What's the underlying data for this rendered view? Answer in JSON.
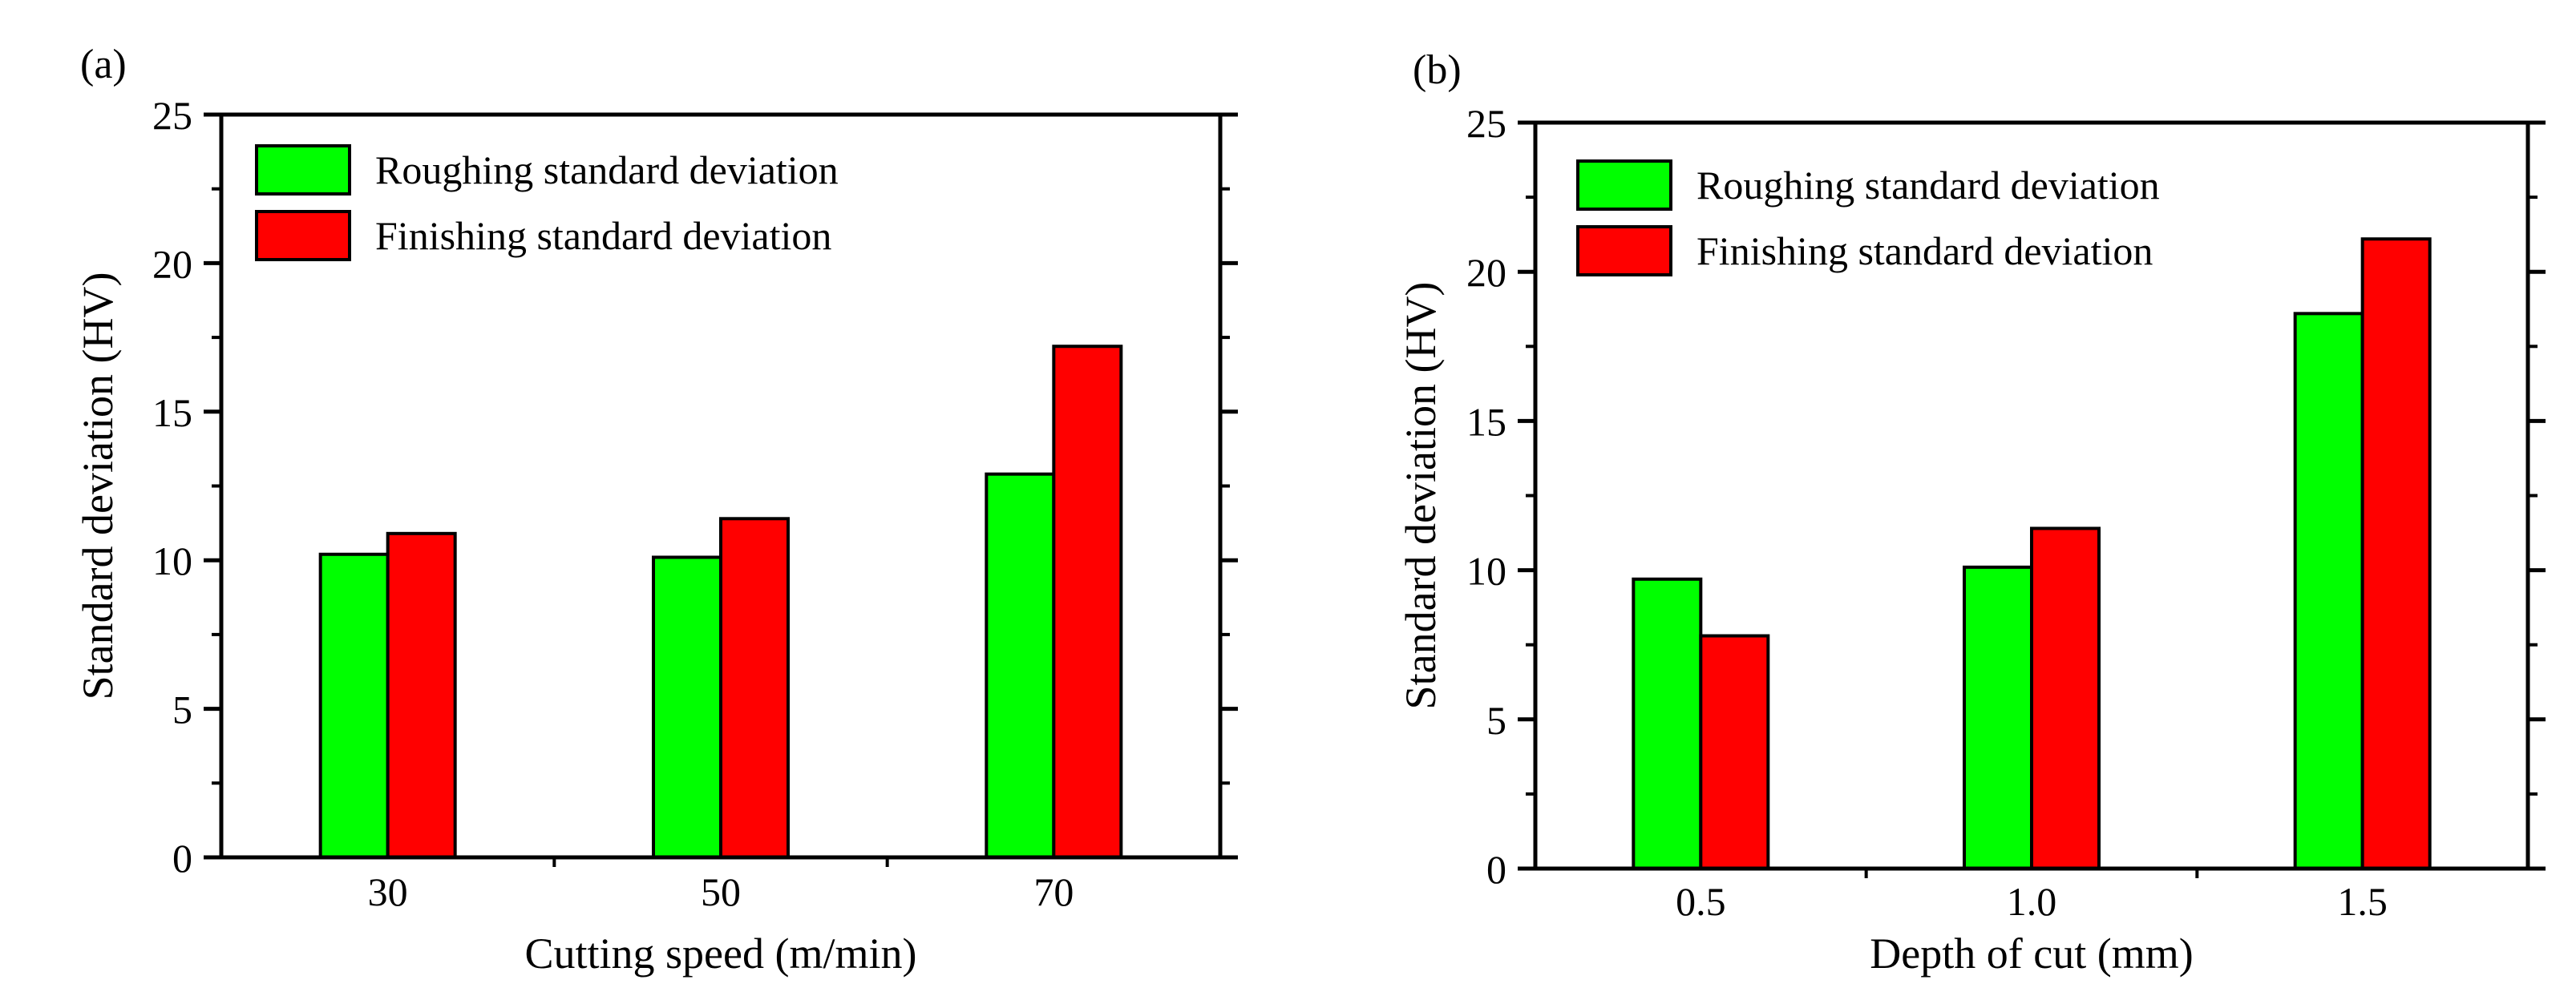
{
  "chart_data": [
    {
      "type": "bar",
      "panel_label": "(a)",
      "title": "",
      "xlabel": "Cutting speed (m/min)",
      "ylabel": "Standard deviation (HV)",
      "categories": [
        "30",
        "50",
        "70"
      ],
      "ylim": [
        0,
        25
      ],
      "yticks": [
        0,
        5,
        10,
        15,
        20,
        25
      ],
      "ytick_labels": [
        "0",
        "5",
        "10",
        "15",
        "20",
        "25"
      ],
      "grid": false,
      "legend_position": "top-left",
      "series": [
        {
          "name": "Roughing standard deviation",
          "color": "#00ff00",
          "values": [
            10.2,
            10.1,
            12.9
          ]
        },
        {
          "name": "Finishing standard deviation",
          "color": "#ff0000",
          "values": [
            10.9,
            11.4,
            17.2
          ]
        }
      ]
    },
    {
      "type": "bar",
      "panel_label": "(b)",
      "title": "",
      "xlabel": "Depth of cut (mm)",
      "ylabel": "Standard deviation (HV)",
      "categories": [
        "0.5",
        "1.0",
        "1.5"
      ],
      "ylim": [
        0,
        25
      ],
      "yticks": [
        0,
        5,
        10,
        15,
        20,
        25
      ],
      "ytick_labels": [
        "0",
        "5",
        "10",
        "15",
        "20",
        "25"
      ],
      "grid": false,
      "legend_position": "top-left",
      "series": [
        {
          "name": "Roughing standard deviation",
          "color": "#00ff00",
          "values": [
            9.7,
            10.1,
            18.6
          ]
        },
        {
          "name": "Finishing standard deviation",
          "color": "#ff0000",
          "values": [
            7.8,
            11.4,
            21.1
          ]
        }
      ]
    }
  ]
}
